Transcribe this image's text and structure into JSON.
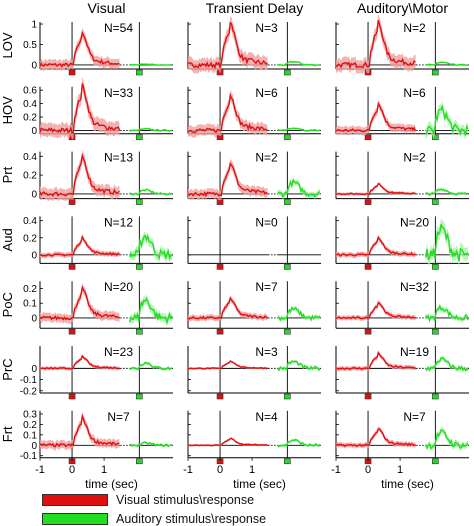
{
  "colors": {
    "visual": "#e01010",
    "visual_band": "#f0a0a0",
    "auditory": "#22dd22",
    "auditory_band": "#a8f0a8"
  },
  "legend": [
    {
      "label": "Visual stimulus\\response",
      "color": "#e01010"
    },
    {
      "label": "Auditory stimulus\\response",
      "color": "#22dd22"
    }
  ],
  "chart_data": {
    "type": "line",
    "columns": [
      "Visual",
      "Transient Delay",
      "Auditory\\Motor"
    ],
    "rows": [
      {
        "region": "LOV",
        "ylim": [
          -0.1,
          1.05
        ],
        "ytick_labels": [
          "0",
          "0.5",
          "1"
        ],
        "yticks": [
          0,
          0.5,
          1
        ],
        "n": [
          "N=54",
          "N=3",
          "N=2"
        ],
        "peaks": [
          0.6,
          0.8,
          0.8
        ],
        "aud_amp": [
          0.02,
          0.08,
          0.06
        ]
      },
      {
        "region": "HOV",
        "ylim": [
          -0.05,
          0.65
        ],
        "ytick_labels": [
          "0",
          "0.2",
          "0.4",
          "0.6"
        ],
        "yticks": [
          0,
          0.2,
          0.4,
          0.6
        ],
        "n": [
          "N=33",
          "N=6",
          "N=6"
        ],
        "peaks": [
          0.5,
          0.4,
          0.3
        ],
        "aud_amp": [
          0.02,
          0.03,
          0.3
        ]
      },
      {
        "region": "Prt",
        "ylim": [
          -0.05,
          0.45
        ],
        "ytick_labels": [
          "0",
          "0.2",
          "0.4"
        ],
        "yticks": [
          0,
          0.2,
          0.4
        ],
        "n": [
          "N=13",
          "N=2",
          "N=2"
        ],
        "peaks": [
          0.3,
          0.25,
          0.08
        ],
        "aud_amp": [
          0.04,
          0.12,
          0.05
        ]
      },
      {
        "region": "Aud",
        "ylim": [
          -0.1,
          0.45
        ],
        "ytick_labels": [
          "0",
          "0.2",
          "0.4"
        ],
        "yticks": [
          0,
          0.2,
          0.4
        ],
        "n": [
          "N=12",
          "N=0",
          "N=20"
        ],
        "peaks": [
          0.15,
          0,
          0.15
        ],
        "aud_amp": [
          0.22,
          0,
          0.3
        ]
      },
      {
        "region": "PoC",
        "ylim": [
          -0.07,
          0.25
        ],
        "ytick_labels": [
          "0",
          "0.1",
          "0.2"
        ],
        "yticks": [
          0,
          0.1,
          0.2
        ],
        "n": [
          "N=20",
          "N=7",
          "N=32"
        ],
        "peaks": [
          0.15,
          0.1,
          0.08
        ],
        "aud_amp": [
          0.12,
          0.06,
          0.07
        ]
      },
      {
        "region": "PrC",
        "ylim": [
          -0.22,
          0.2
        ],
        "ytick_labels": [
          "0",
          "-0.1",
          "-0.2"
        ],
        "yticks": [
          0,
          -0.1,
          -0.2
        ],
        "n": [
          "N=23",
          "N=3",
          "N=19"
        ],
        "peaks": [
          0.08,
          0.05,
          0.1
        ],
        "aud_amp": [
          0.05,
          0.06,
          0.08
        ]
      },
      {
        "region": "Frt",
        "ylim": [
          -0.12,
          0.33
        ],
        "ytick_labels": [
          "0.3",
          "0.2",
          "0.1",
          "0",
          "-0.1"
        ],
        "yticks": [
          0.3,
          0.2,
          0.1,
          0,
          -0.1
        ],
        "n": [
          "N=7",
          "N=4",
          "N=7"
        ],
        "peaks": [
          0.2,
          0.05,
          0.12
        ],
        "aud_amp": [
          0.02,
          0.05,
          0.12
        ]
      }
    ],
    "x_ticks": [
      -1,
      0,
      1
    ],
    "x_tick_labels": [
      "-1",
      "0",
      "1"
    ],
    "xlabel": "time (sec)",
    "xlim": [
      -1,
      3.15
    ],
    "visual_window": [
      -1,
      1.5
    ],
    "auditory_window": [
      1.8,
      3.15
    ],
    "auditory_onset": 2.1
  }
}
